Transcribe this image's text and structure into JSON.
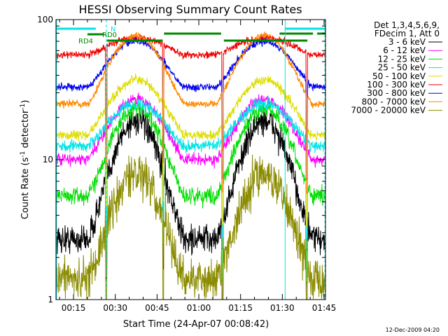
{
  "chart_data": {
    "type": "line",
    "title": "HESSI Observing Summary Count Rates",
    "xlabel": "Start Time (24-Apr-07 00:08:42)",
    "ylabel_main": "Count Rate (s",
    "ylabel_sup1": "-1",
    "ylabel_mid": " detector",
    "ylabel_sup2": "-1",
    "ylabel_end": ")",
    "yscale": "log",
    "ylim": [
      1,
      100
    ],
    "y_tick_labels": [
      "1",
      "10",
      "100"
    ],
    "xlim": [
      8.7,
      105.5
    ],
    "x_ticks": [
      {
        "value": 15,
        "label": "00:15"
      },
      {
        "value": 30,
        "label": "00:30"
      },
      {
        "value": 45,
        "label": "00:45"
      },
      {
        "value": 60,
        "label": "01:00"
      },
      {
        "value": 75,
        "label": "01:15"
      },
      {
        "value": 90,
        "label": "01:30"
      },
      {
        "value": 105,
        "label": "01:45"
      }
    ],
    "legend_header": [
      "Det 1,3,4,5,6,9,",
      "FDecim 1, Att 0"
    ],
    "legend_position": "right",
    "series": [
      {
        "name": "3 - 6 keV",
        "color": "#000000",
        "base": 2.7,
        "peak": 19,
        "noise": 0.12
      },
      {
        "name": "6 - 12 keV",
        "color": "#ff00ff",
        "base": 10,
        "peak": 27,
        "noise": 0.05
      },
      {
        "name": "12 - 25 keV",
        "color": "#00dd00",
        "base": 5.5,
        "peak": 23,
        "noise": 0.07
      },
      {
        "name": "25 - 50 keV",
        "color": "#00e5e5",
        "base": 12.5,
        "peak": 25,
        "noise": 0.05
      },
      {
        "name": "50 - 100 keV",
        "color": "#dddd00",
        "base": 15,
        "peak": 37,
        "noise": 0.04
      },
      {
        "name": "100 - 300 keV",
        "color": "#ee0000",
        "base": 56,
        "peak": 74,
        "noise": 0.03
      },
      {
        "name": "300 - 800 keV",
        "color": "#0000ee",
        "base": 33,
        "peak": 70,
        "noise": 0.03
      },
      {
        "name": "800 - 7000 keV",
        "color": "#ff8800",
        "base": 25,
        "peak": 77,
        "noise": 0.03
      },
      {
        "name": "7000 - 20000 keV",
        "color": "#8b8b00",
        "base": 1.4,
        "peak": 8,
        "noise": 0.18
      }
    ],
    "peaks_minutes": [
      37.5,
      83.5
    ],
    "flags": [
      {
        "label": "N",
        "color": "#00e5e5"
      },
      {
        "label": "RD0",
        "color": "#008800"
      },
      {
        "label": "RD4",
        "color": "#008800"
      }
    ],
    "flag_colors": {
      "cyan": "#00e5e5",
      "green": "#008800"
    }
  },
  "footer_timestamp": "12-Dec-2009 04:20"
}
